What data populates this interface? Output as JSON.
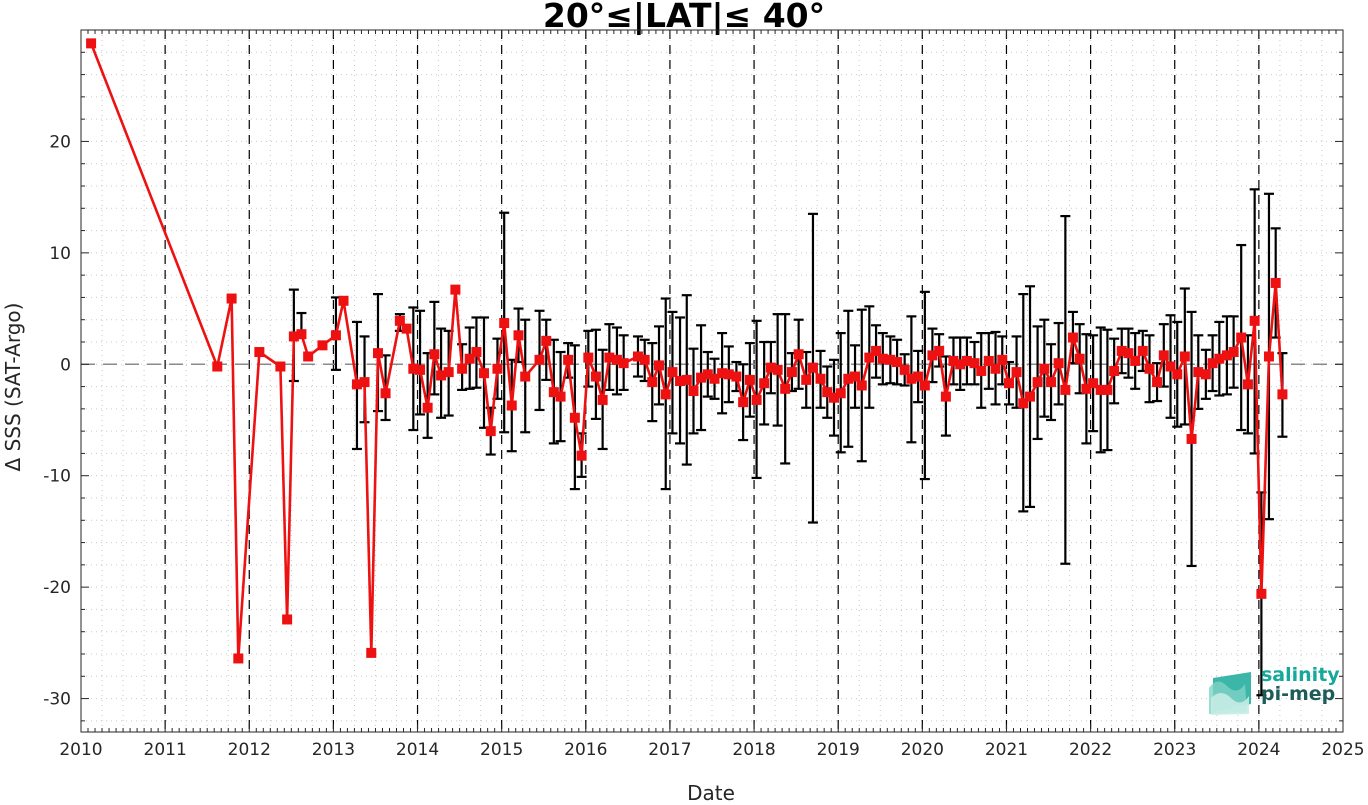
{
  "chart_data": {
    "type": "line",
    "title": "20°≤|LAT|≤ 40°",
    "xlabel": "Date",
    "ylabel": "Δ SSS (SAT-Argo)",
    "xlim": [
      2010,
      2025
    ],
    "ylim": [
      -33,
      30
    ],
    "xticks": [
      "2010",
      "2011",
      "2012",
      "2013",
      "2014",
      "2015",
      "2016",
      "2017",
      "2018",
      "2019",
      "2020",
      "2021",
      "2022",
      "2023",
      "2024",
      "2025"
    ],
    "yticks": [
      "20",
      "10",
      "0",
      "-10",
      "-20",
      "-30"
    ],
    "reference_line": 0,
    "vertical_dashed_lines": [
      2011,
      2012,
      2013,
      2014,
      2015,
      2016,
      2017,
      2018,
      2019,
      2020,
      2021,
      2022,
      2023,
      2024
    ],
    "grid": "minor-dotted",
    "series": [
      {
        "color": "#ee1111",
        "marker": "square",
        "points": [
          [
            2010.12,
            28.8,
            null,
            null
          ],
          [
            2011.62,
            -0.2,
            null,
            null
          ],
          [
            2011.79,
            5.9,
            null,
            null
          ],
          [
            2011.87,
            -26.4,
            null,
            null
          ],
          [
            2012.12,
            1.1,
            null,
            null
          ],
          [
            2012.37,
            -0.2,
            null,
            null
          ],
          [
            2012.45,
            -22.9,
            null,
            null
          ],
          [
            2012.53,
            2.5,
            -1.5,
            6.7
          ],
          [
            2012.62,
            2.7,
            null,
            4.6
          ],
          [
            2012.7,
            0.7,
            null,
            null
          ],
          [
            2012.87,
            1.7,
            null,
            null
          ],
          [
            2013.03,
            2.6,
            -0.5,
            6.0
          ],
          [
            2013.12,
            5.7,
            null,
            null
          ],
          [
            2013.28,
            -1.8,
            -7.6,
            3.8
          ],
          [
            2013.37,
            -1.6,
            -5.2,
            2.5
          ],
          [
            2013.45,
            -25.9,
            null,
            null
          ],
          [
            2013.53,
            1.0,
            -4.2,
            6.3
          ],
          [
            2013.62,
            -2.6,
            -5.0,
            0.8
          ],
          [
            2013.79,
            3.9,
            3.0,
            4.5
          ],
          [
            2013.87,
            3.2,
            null,
            null
          ],
          [
            2013.95,
            -0.4,
            -5.9,
            5.1
          ],
          [
            2014.03,
            -0.5,
            -4.5,
            4.8
          ],
          [
            2014.12,
            -3.9,
            -6.6,
            1.0
          ],
          [
            2014.2,
            0.9,
            -2.7,
            5.6
          ],
          [
            2014.28,
            -1.0,
            -4.8,
            3.2
          ],
          [
            2014.37,
            -0.7,
            -4.6,
            3.0
          ],
          [
            2014.45,
            6.7,
            null,
            null
          ],
          [
            2014.53,
            -0.4,
            -2.3,
            1.8
          ],
          [
            2014.62,
            0.5,
            -2.2,
            3.3
          ],
          [
            2014.7,
            1.1,
            -2.1,
            4.2
          ],
          [
            2014.79,
            -0.8,
            -5.7,
            4.2
          ],
          [
            2014.87,
            -6.0,
            -8.1,
            -3.9
          ],
          [
            2014.95,
            -0.4,
            -3.1,
            2.3
          ],
          [
            2015.03,
            3.7,
            -6.1,
            13.6
          ],
          [
            2015.12,
            -3.7,
            -7.8,
            0.4
          ],
          [
            2015.2,
            2.6,
            0.2,
            5.0
          ],
          [
            2015.28,
            -1.1,
            -6.1,
            4.0
          ],
          [
            2015.45,
            0.4,
            -4.1,
            4.8
          ],
          [
            2015.53,
            2.1,
            -1.4,
            4.0
          ],
          [
            2015.62,
            -2.5,
            -7.1,
            2.2
          ],
          [
            2015.7,
            -2.9,
            -6.9,
            1.1
          ],
          [
            2015.79,
            0.4,
            -1.2,
            1.9
          ],
          [
            2015.87,
            -4.8,
            -11.2,
            1.7
          ],
          [
            2015.95,
            -8.2,
            -10.1,
            -6.2
          ],
          [
            2016.03,
            0.6,
            -2.0,
            3.0
          ],
          [
            2016.12,
            -1.1,
            -4.9,
            3.1
          ],
          [
            2016.2,
            -3.2,
            -7.6,
            1.3
          ],
          [
            2016.28,
            0.6,
            -2.3,
            3.6
          ],
          [
            2016.37,
            0.4,
            -2.7,
            3.3
          ],
          [
            2016.45,
            0.1,
            -2.3,
            2.6
          ],
          [
            2016.62,
            0.7,
            -1.1,
            2.5
          ],
          [
            2016.7,
            0.4,
            -1.5,
            2.2
          ],
          [
            2016.79,
            -1.6,
            -5.1,
            1.9
          ],
          [
            2016.87,
            -0.1,
            -3.6,
            3.4
          ],
          [
            2016.95,
            -2.7,
            -11.2,
            5.9
          ],
          [
            2017.03,
            -0.7,
            -6.2,
            4.7
          ],
          [
            2017.12,
            -1.5,
            -7.1,
            4.2
          ],
          [
            2017.2,
            -1.4,
            -9.0,
            6.2
          ],
          [
            2017.28,
            -2.4,
            -6.2,
            1.4
          ],
          [
            2017.37,
            -1.2,
            -5.9,
            3.5
          ],
          [
            2017.45,
            -0.9,
            -2.9,
            1.1
          ],
          [
            2017.53,
            -1.3,
            -3.1,
            0.5
          ],
          [
            2017.62,
            -0.8,
            -4.4,
            2.8
          ],
          [
            2017.7,
            -0.9,
            -3.4,
            1.6
          ],
          [
            2017.79,
            -1.1,
            -2.4,
            0.2
          ],
          [
            2017.87,
            -3.4,
            -6.8,
            0.0
          ],
          [
            2017.95,
            -1.4,
            -4.7,
            1.9
          ],
          [
            2018.03,
            -3.2,
            -10.2,
            3.9
          ],
          [
            2018.12,
            -1.7,
            -5.4,
            2.0
          ],
          [
            2018.2,
            -0.3,
            -2.6,
            2.0
          ],
          [
            2018.28,
            -0.5,
            -5.5,
            4.5
          ],
          [
            2018.37,
            -2.2,
            -8.9,
            4.5
          ],
          [
            2018.45,
            -0.7,
            -2.4,
            1.0
          ],
          [
            2018.53,
            0.9,
            -2.2,
            4.0
          ],
          [
            2018.62,
            -1.4,
            -3.9,
            1.1
          ],
          [
            2018.7,
            -0.3,
            -14.2,
            13.5
          ],
          [
            2018.79,
            -1.3,
            -3.9,
            1.2
          ],
          [
            2018.87,
            -2.5,
            -4.8,
            -0.2
          ],
          [
            2018.95,
            -3.0,
            -6.4,
            0.4
          ],
          [
            2019.03,
            -2.6,
            -7.9,
            2.8
          ],
          [
            2019.12,
            -1.3,
            -7.4,
            4.8
          ],
          [
            2019.2,
            -1.1,
            -3.9,
            1.7
          ],
          [
            2019.28,
            -1.9,
            -8.7,
            4.9
          ],
          [
            2019.37,
            0.6,
            -3.9,
            5.2
          ],
          [
            2019.45,
            1.2,
            -1.2,
            3.5
          ],
          [
            2019.53,
            0.5,
            -1.8,
            2.8
          ],
          [
            2019.62,
            0.4,
            -1.7,
            2.5
          ],
          [
            2019.7,
            0.2,
            -1.8,
            2.2
          ],
          [
            2019.79,
            -0.5,
            -1.9,
            0.9
          ],
          [
            2019.87,
            -1.3,
            -7.0,
            4.3
          ],
          [
            2019.95,
            -1.1,
            -3.4,
            1.2
          ],
          [
            2020.03,
            -1.9,
            -10.3,
            6.5
          ],
          [
            2020.12,
            0.8,
            -1.6,
            3.2
          ],
          [
            2020.2,
            1.2,
            -0.2,
            2.7
          ],
          [
            2020.28,
            -2.9,
            -6.4,
            0.7
          ],
          [
            2020.37,
            0.3,
            -1.8,
            2.4
          ],
          [
            2020.45,
            0.0,
            -2.3,
            2.4
          ],
          [
            2020.53,
            0.3,
            -1.8,
            2.4
          ],
          [
            2020.62,
            0.1,
            -1.8,
            2.0
          ],
          [
            2020.7,
            -0.6,
            -3.9,
            2.8
          ],
          [
            2020.79,
            0.3,
            -2.2,
            2.8
          ],
          [
            2020.87,
            -0.4,
            -3.6,
            2.9
          ],
          [
            2020.95,
            0.4,
            -1.8,
            2.5
          ],
          [
            2021.03,
            -1.7,
            -3.6,
            0.2
          ],
          [
            2021.12,
            -0.7,
            -3.9,
            2.5
          ],
          [
            2021.2,
            -3.5,
            -13.2,
            6.3
          ],
          [
            2021.28,
            -2.9,
            -12.8,
            7.0
          ],
          [
            2021.37,
            -1.6,
            -6.7,
            3.4
          ],
          [
            2021.45,
            -0.4,
            -4.7,
            4.0
          ],
          [
            2021.53,
            -1.6,
            -5.0,
            1.8
          ],
          [
            2021.62,
            0.1,
            -3.6,
            3.7
          ],
          [
            2021.7,
            -2.3,
            -17.9,
            13.3
          ],
          [
            2021.79,
            2.4,
            0.1,
            4.7
          ],
          [
            2021.87,
            0.5,
            -2.6,
            3.6
          ],
          [
            2021.95,
            -2.2,
            -7.1,
            2.7
          ],
          [
            2022.03,
            -1.7,
            -6.0,
            2.6
          ],
          [
            2022.12,
            -2.3,
            -7.9,
            3.3
          ],
          [
            2022.2,
            -2.3,
            -7.7,
            3.1
          ],
          [
            2022.28,
            -0.6,
            -3.5,
            2.3
          ],
          [
            2022.37,
            1.2,
            -0.8,
            3.2
          ],
          [
            2022.45,
            1.0,
            -1.2,
            3.2
          ],
          [
            2022.53,
            0.3,
            -2.2,
            2.8
          ],
          [
            2022.62,
            1.2,
            -0.6,
            3.0
          ],
          [
            2022.7,
            -0.4,
            -3.4,
            2.6
          ],
          [
            2022.79,
            -1.6,
            -3.3,
            0.1
          ],
          [
            2022.87,
            0.8,
            -2.0,
            3.6
          ],
          [
            2022.95,
            -0.2,
            -4.8,
            4.4
          ],
          [
            2023.03,
            -0.9,
            -5.6,
            3.8
          ],
          [
            2023.12,
            0.7,
            -5.4,
            6.8
          ],
          [
            2023.2,
            -6.7,
            -18.1,
            4.7
          ],
          [
            2023.28,
            -0.7,
            -4.0,
            2.6
          ],
          [
            2023.37,
            -0.9,
            -3.1,
            1.3
          ],
          [
            2023.45,
            0.1,
            -2.4,
            2.6
          ],
          [
            2023.53,
            0.5,
            -2.8,
            3.8
          ],
          [
            2023.62,
            0.8,
            -2.7,
            4.3
          ],
          [
            2023.7,
            1.1,
            -2.1,
            4.3
          ],
          [
            2023.79,
            2.4,
            -5.9,
            10.7
          ],
          [
            2023.87,
            -1.8,
            -6.2,
            2.6
          ],
          [
            2023.95,
            3.9,
            -8.0,
            15.7
          ],
          [
            2024.03,
            -20.6,
            -29.7,
            -11.5
          ],
          [
            2024.12,
            0.7,
            -13.9,
            15.3
          ],
          [
            2024.2,
            7.3,
            2.4,
            12.2
          ],
          [
            2024.28,
            -2.7,
            -6.5,
            1.0
          ]
        ]
      }
    ]
  },
  "logo": {
    "line1": "salinity",
    "line2": "pi-mep"
  }
}
